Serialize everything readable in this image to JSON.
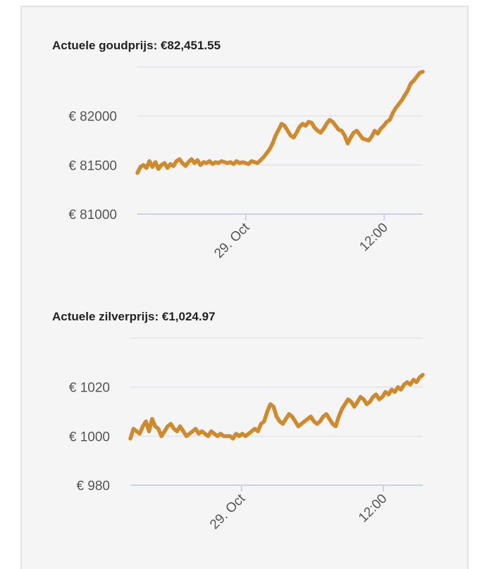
{
  "colors": {
    "line": "#d08a2e",
    "grid": "#e1e3e8",
    "axis": "#c9d2e6",
    "panel": "#f5f5f6"
  },
  "chart_data": [
    {
      "type": "line",
      "title": "Actuele goudprijs: €82,451.55",
      "x_tick_labels": [
        "29. Oct",
        "12:00"
      ],
      "y_tick_labels": [
        "€ 81000",
        "€ 81500",
        "€ 82000"
      ],
      "y_ticks": [
        81000,
        81500,
        82000
      ],
      "ylim": [
        81000,
        82500
      ],
      "xlim": [
        0,
        100
      ],
      "x_ticks": [
        38,
        86.5
      ],
      "grid": true,
      "series": [
        {
          "values": [
            81420,
            81480,
            81500,
            81470,
            81540,
            81480,
            81530,
            81460,
            81500,
            81520,
            81470,
            81510,
            81490,
            81540,
            81560,
            81520,
            81490,
            81530,
            81560,
            81520,
            81550,
            81500,
            81530,
            81520,
            81540,
            81510,
            81530,
            81520,
            81540,
            81530,
            81520,
            81530,
            81510,
            81540,
            81520,
            81530,
            81520,
            81510,
            81540,
            81530,
            81520,
            81550,
            81580,
            81620,
            81660,
            81720,
            81800,
            81860,
            81920,
            81900,
            81850,
            81800,
            81780,
            81830,
            81890,
            81920,
            81900,
            81940,
            81930,
            81880,
            81850,
            81830,
            81870,
            81920,
            81960,
            81940,
            81900,
            81860,
            81850,
            81800,
            81720,
            81780,
            81830,
            81850,
            81810,
            81770,
            81760,
            81750,
            81790,
            81850,
            81820,
            81870,
            81900,
            81940,
            81960,
            82030,
            82080,
            82120,
            82160,
            82210,
            82260,
            82330,
            82360,
            82400,
            82440,
            82451
          ],
          "x_start": 0,
          "x_end": 100
        }
      ]
    },
    {
      "type": "line",
      "title": "Actuele zilverprijs: €1,024.97",
      "x_tick_labels": [
        "29. Oct",
        "12:00"
      ],
      "y_tick_labels": [
        "€ 980",
        "€ 1000",
        "€ 1020"
      ],
      "y_ticks": [
        980,
        1000,
        1020
      ],
      "ylim": [
        980,
        1040
      ],
      "xlim": [
        0,
        100
      ],
      "x_ticks": [
        38,
        86.5
      ],
      "grid": true,
      "series": [
        {
          "values": [
            999,
            1003,
            1002,
            1001,
            1004,
            1006,
            1002,
            1007,
            1004,
            1003,
            1000,
            1002,
            1004,
            1005,
            1003,
            1002,
            1004,
            1002,
            1000,
            1001,
            1002,
            1003,
            1001,
            1002,
            1001,
            1000,
            1002,
            1001,
            1000,
            1001,
            1000,
            1000,
            1000,
            999,
            1001,
            1000,
            1001,
            1000,
            1001,
            1002,
            1003,
            1002,
            1005,
            1006,
            1010,
            1013,
            1012,
            1008,
            1006,
            1005,
            1007,
            1009,
            1008,
            1006,
            1004,
            1005,
            1006,
            1007,
            1008,
            1006,
            1005,
            1006,
            1008,
            1009,
            1007,
            1005,
            1004,
            1008,
            1011,
            1013,
            1015,
            1014,
            1012,
            1014,
            1016,
            1015,
            1013,
            1014,
            1016,
            1017,
            1015,
            1016,
            1018,
            1017,
            1019,
            1018,
            1020,
            1019,
            1021,
            1022,
            1021,
            1023,
            1022,
            1024,
            1025
          ],
          "x_start": 0,
          "x_end": 100
        }
      ]
    }
  ]
}
